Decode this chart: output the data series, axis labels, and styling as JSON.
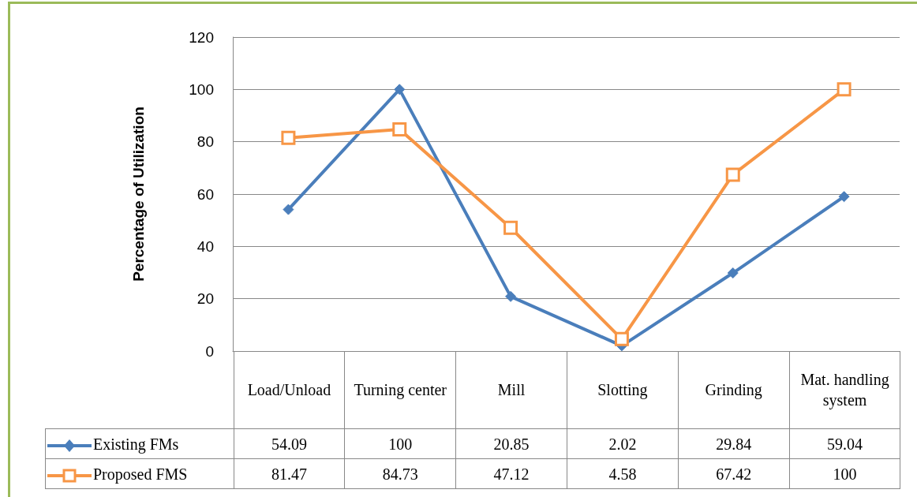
{
  "chart_data": {
    "type": "line",
    "ylabel": "Percentage of Utilization",
    "categories": [
      "Load/Unload",
      "Turning center",
      "Mill",
      "Slotting",
      "Grinding",
      "Mat. handling system"
    ],
    "series": [
      {
        "name": "Existing FMs",
        "color": "#4a7ebb",
        "marker": "diamond",
        "values": [
          54.09,
          100,
          20.85,
          2.02,
          29.84,
          59.04
        ]
      },
      {
        "name": "Proposed FMS",
        "color": "#f79646",
        "marker": "square",
        "values": [
          81.47,
          84.73,
          47.12,
          4.58,
          67.42,
          100
        ]
      }
    ],
    "ylim": [
      0,
      120
    ],
    "yticks": [
      0,
      20,
      40,
      60,
      80,
      100,
      120
    ],
    "grid": "y",
    "legend": "bottom",
    "data_labels": true
  }
}
